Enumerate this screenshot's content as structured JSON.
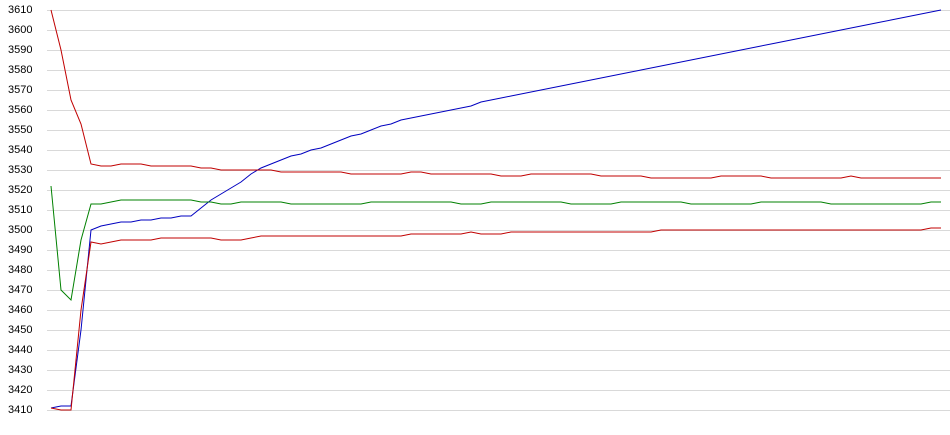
{
  "chart_data": {
    "type": "line",
    "ylim": [
      3410,
      3610
    ],
    "yticks": [
      3410,
      3420,
      3430,
      3440,
      3450,
      3460,
      3470,
      3480,
      3490,
      3500,
      3510,
      3520,
      3530,
      3540,
      3550,
      3560,
      3570,
      3580,
      3590,
      3600,
      3610
    ],
    "grid": true,
    "series": [
      {
        "color": "#0000c0",
        "values": [
          3411,
          3412,
          3412,
          3450,
          3500,
          3502,
          3503,
          3504,
          3504,
          3505,
          3505,
          3506,
          3506,
          3507,
          3507,
          3511,
          3515,
          3518,
          3521,
          3524,
          3528,
          3531,
          3533,
          3535,
          3537,
          3538,
          3540,
          3541,
          3543,
          3545,
          3547,
          3548,
          3550,
          3552,
          3553,
          3555,
          3556,
          3557,
          3558,
          3559,
          3560,
          3561,
          3562,
          3564,
          3565,
          3566,
          3567,
          3568,
          3569,
          3570,
          3571,
          3572,
          3573,
          3574,
          3575,
          3576,
          3577,
          3578,
          3579,
          3580,
          3581,
          3582,
          3583,
          3584,
          3585,
          3586,
          3587,
          3588,
          3589,
          3590,
          3591,
          3592,
          3593,
          3594,
          3595,
          3596,
          3597,
          3598,
          3599,
          3600,
          3601,
          3602,
          3603,
          3604,
          3605,
          3606,
          3607,
          3608,
          3609,
          3610
        ]
      },
      {
        "color": "#c00000",
        "values": [
          3610,
          3590,
          3565,
          3553,
          3533,
          3532,
          3532,
          3533,
          3533,
          3533,
          3532,
          3532,
          3532,
          3532,
          3532,
          3531,
          3531,
          3530,
          3530,
          3530,
          3530,
          3530,
          3530,
          3529,
          3529,
          3529,
          3529,
          3529,
          3529,
          3529,
          3528,
          3528,
          3528,
          3528,
          3528,
          3528,
          3529,
          3529,
          3528,
          3528,
          3528,
          3528,
          3528,
          3528,
          3528,
          3527,
          3527,
          3527,
          3528,
          3528,
          3528,
          3528,
          3528,
          3528,
          3528,
          3527,
          3527,
          3527,
          3527,
          3527,
          3526,
          3526,
          3526,
          3526,
          3526,
          3526,
          3526,
          3527,
          3527,
          3527,
          3527,
          3527,
          3526,
          3526,
          3526,
          3526,
          3526,
          3526,
          3526,
          3526,
          3527,
          3526,
          3526,
          3526,
          3526,
          3526,
          3526,
          3526,
          3526,
          3526
        ]
      },
      {
        "color": "#008000",
        "values": [
          3522,
          3470,
          3465,
          3495,
          3513,
          3513,
          3514,
          3515,
          3515,
          3515,
          3515,
          3515,
          3515,
          3515,
          3515,
          3514,
          3514,
          3513,
          3513,
          3514,
          3514,
          3514,
          3514,
          3514,
          3513,
          3513,
          3513,
          3513,
          3513,
          3513,
          3513,
          3513,
          3514,
          3514,
          3514,
          3514,
          3514,
          3514,
          3514,
          3514,
          3514,
          3513,
          3513,
          3513,
          3514,
          3514,
          3514,
          3514,
          3514,
          3514,
          3514,
          3514,
          3513,
          3513,
          3513,
          3513,
          3513,
          3514,
          3514,
          3514,
          3514,
          3514,
          3514,
          3514,
          3513,
          3513,
          3513,
          3513,
          3513,
          3513,
          3513,
          3514,
          3514,
          3514,
          3514,
          3514,
          3514,
          3514,
          3513,
          3513,
          3513,
          3513,
          3513,
          3513,
          3513,
          3513,
          3513,
          3513,
          3514,
          3514
        ]
      },
      {
        "color": "#c00000",
        "values": [
          3411,
          3410,
          3410,
          3460,
          3494,
          3493,
          3494,
          3495,
          3495,
          3495,
          3495,
          3496,
          3496,
          3496,
          3496,
          3496,
          3496,
          3495,
          3495,
          3495,
          3496,
          3497,
          3497,
          3497,
          3497,
          3497,
          3497,
          3497,
          3497,
          3497,
          3497,
          3497,
          3497,
          3497,
          3497,
          3497,
          3498,
          3498,
          3498,
          3498,
          3498,
          3498,
          3499,
          3498,
          3498,
          3498,
          3499,
          3499,
          3499,
          3499,
          3499,
          3499,
          3499,
          3499,
          3499,
          3499,
          3499,
          3499,
          3499,
          3499,
          3499,
          3500,
          3500,
          3500,
          3500,
          3500,
          3500,
          3500,
          3500,
          3500,
          3500,
          3500,
          3500,
          3500,
          3500,
          3500,
          3500,
          3500,
          3500,
          3500,
          3500,
          3500,
          3500,
          3500,
          3500,
          3500,
          3500,
          3500,
          3501,
          3501
        ]
      }
    ]
  }
}
